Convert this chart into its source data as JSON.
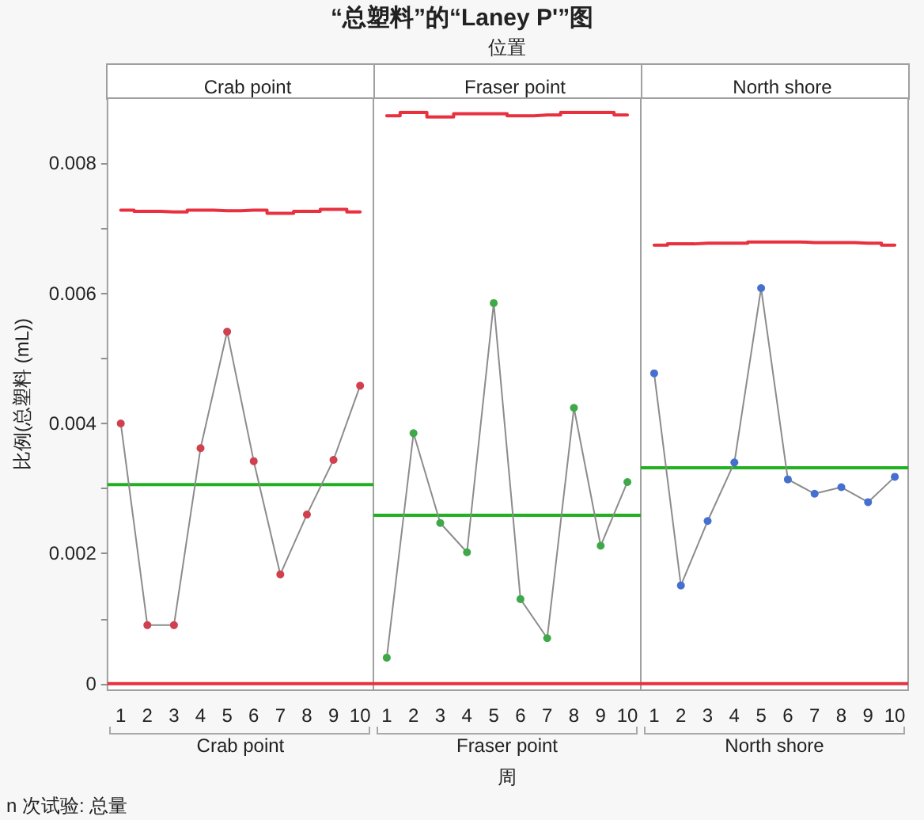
{
  "chart_data": [
    {
      "type": "line",
      "title": "Crab point",
      "xlabel": "Crab point",
      "ylabel": "比例(总塑料 (mL))",
      "annotations": [
        "“总塑料”的“Laney P'”图",
        "位置",
        "周",
        "n 次试验: 总量"
      ],
      "x": [
        1,
        2,
        3,
        4,
        5,
        6,
        7,
        8,
        9,
        10
      ],
      "xlim": [
        0.5,
        10.5
      ],
      "xticks": [
        1,
        2,
        3,
        4,
        5,
        6,
        7,
        8,
        9,
        10
      ],
      "ylim": [
        -0.0001,
        0.009
      ],
      "yticks": [
        0,
        {
          "value": 0.001,
          "label": null
        },
        0.002,
        {
          "value": 0.003,
          "label": null
        },
        0.004,
        {
          "value": 0.005,
          "label": null
        },
        0.006,
        {
          "value": 0.007,
          "label": null
        },
        0.008
      ],
      "series": [
        {
          "type": "step",
          "color": "#e8303f",
          "marker": "none",
          "values": [
            0.00728,
            0.00726,
            0.00725,
            0.00728,
            0.00727,
            0.00728,
            0.00723,
            0.00726,
            0.00729,
            0.00725
          ]
        },
        {
          "color": "#8c8c8c",
          "marker": "circle",
          "colors": [
            "#d0404f",
            "#d0404f",
            "#d0404f",
            "#d0404f",
            "#d0404f",
            "#d0404f",
            "#d0404f",
            "#d0404f",
            "#d0404f",
            "#d0404f"
          ],
          "values": [
            0.004,
            0.0009,
            0.0009,
            0.00362,
            0.00541,
            0.00342,
            0.00168,
            0.0026,
            0.00344,
            0.00458
          ]
        }
      ],
      "ref_lines": [
        {
          "axis": "y",
          "value": 0.00306,
          "color": "#20b020"
        },
        {
          "axis": "y",
          "value": 0,
          "color": "#e8303f"
        }
      ]
    },
    {
      "type": "line",
      "title": "Fraser point",
      "xlabel": "Fraser point",
      "tick_labels": "x",
      "x": [
        1,
        2,
        3,
        4,
        5,
        6,
        7,
        8,
        9,
        10
      ],
      "xlim": [
        0.5,
        10.5
      ],
      "xticks": [
        1,
        2,
        3,
        4,
        5,
        6,
        7,
        8,
        9,
        10
      ],
      "ylim": [
        -0.0001,
        0.009
      ],
      "series": [
        {
          "type": "step",
          "color": "#e8303f",
          "marker": "none",
          "values": [
            0.00873,
            0.00878,
            0.00871,
            0.00876,
            0.00876,
            0.00873,
            0.00874,
            0.00878,
            0.00878,
            0.00874
          ]
        },
        {
          "color": "#8c8c8c",
          "marker": "circle",
          "colors": [
            "#3fa94a",
            "#3fa94a",
            "#3fa94a",
            "#3fa94a",
            "#3fa94a",
            "#3fa94a",
            "#3fa94a",
            "#3fa94a",
            "#3fa94a",
            "#3fa94a"
          ],
          "values": [
            0.0004,
            0.00385,
            0.00247,
            0.00202,
            0.00585,
            0.0013,
            0.0007,
            0.00424,
            0.00212,
            0.0031
          ]
        }
      ],
      "ref_lines": [
        {
          "axis": "y",
          "value": 0.00259,
          "color": "#20b020"
        },
        {
          "axis": "y",
          "value": 0,
          "color": "#e8303f"
        }
      ]
    },
    {
      "type": "line",
      "title": "North shore",
      "xlabel": "North shore",
      "tick_labels": "x",
      "x": [
        1,
        2,
        3,
        4,
        5,
        6,
        7,
        8,
        9,
        10
      ],
      "xlim": [
        0.5,
        10.5
      ],
      "xticks": [
        1,
        2,
        3,
        4,
        5,
        6,
        7,
        8,
        9,
        10
      ],
      "ylim": [
        -0.0001,
        0.009
      ],
      "series": [
        {
          "type": "step",
          "color": "#e8303f",
          "marker": "none",
          "values": [
            0.00674,
            0.00676,
            0.00677,
            0.00677,
            0.00679,
            0.00679,
            0.00678,
            0.00678,
            0.00677,
            0.00674
          ]
        },
        {
          "color": "#8c8c8c",
          "marker": "circle",
          "colors": [
            "#4670d0",
            "#4670d0",
            "#4670d0",
            "#4670d0",
            "#4670d0",
            "#4670d0",
            "#4670d0",
            "#4670d0",
            "#4670d0",
            "#4670d0"
          ],
          "values": [
            0.00477,
            0.00151,
            0.0025,
            0.0034,
            0.00608,
            0.00314,
            0.00292,
            0.00302,
            0.00279,
            0.00318
          ]
        }
      ],
      "ref_lines": [
        {
          "axis": "y",
          "value": 0.00332,
          "color": "#20b020"
        },
        {
          "axis": "y",
          "value": 0,
          "color": "#e8303f"
        }
      ]
    }
  ]
}
